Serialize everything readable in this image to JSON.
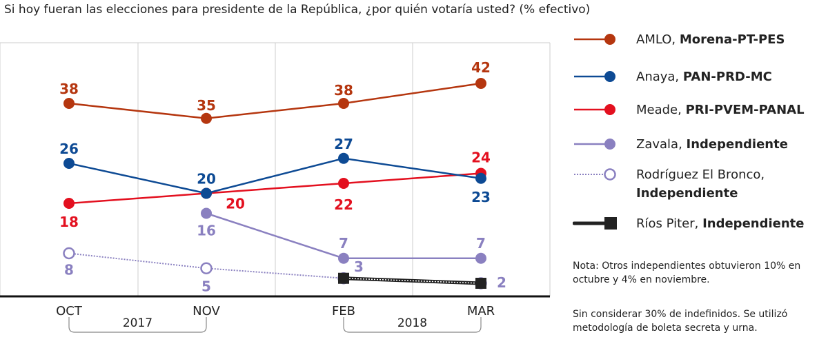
{
  "chart_data": {
    "type": "line",
    "title": "Si hoy fueran las elecciones para presidente de la República, ¿por quién votaría usted? (% efectivo)",
    "categories": [
      "OCT",
      "NOV",
      "FEB",
      "MAR"
    ],
    "year_groups": [
      {
        "label": "2017",
        "from": "OCT",
        "to": "NOV"
      },
      {
        "label": "2018",
        "from": "FEB",
        "to": "MAR"
      }
    ],
    "ylim": [
      0,
      45
    ],
    "grid": "vertical",
    "legend_position": "right",
    "series": [
      {
        "name": "AMLO",
        "party": "Morena-PT-PES",
        "color": "#b5360f",
        "marker": "filled-circle",
        "values": [
          38,
          35,
          38,
          42
        ]
      },
      {
        "name": "Anaya",
        "party": "PAN-PRD-MC",
        "color": "#0d4a94",
        "marker": "filled-circle",
        "values": [
          26,
          20,
          27,
          23
        ]
      },
      {
        "name": "Meade",
        "party": "PRI-PVEM-PANAL",
        "color": "#e3101f",
        "marker": "filled-circle",
        "values": [
          18,
          20,
          22,
          24
        ]
      },
      {
        "name": "Zavala",
        "party": "Independiente",
        "color": "#8a80c0",
        "marker": "filled-circle",
        "values": [
          null,
          16,
          7,
          7
        ]
      },
      {
        "name": "Rodríguez El Bronco",
        "party": "Independiente",
        "color": "#8a80c0",
        "marker": "open-circle",
        "line": "dotted",
        "values": [
          8,
          5,
          3,
          2
        ]
      },
      {
        "name": "Ríos Piter",
        "party": "Independiente",
        "color": "#222222",
        "marker": "square",
        "values": [
          null,
          null,
          3,
          2
        ],
        "show_labels": false
      }
    ],
    "notes": [
      "Nota: Otros independientes obtuvieron 10% en octubre y 4% en noviembre.",
      "Sin considerar 30% de indefinidos. Se utilizó metodología de boleta secreta y urna."
    ]
  }
}
